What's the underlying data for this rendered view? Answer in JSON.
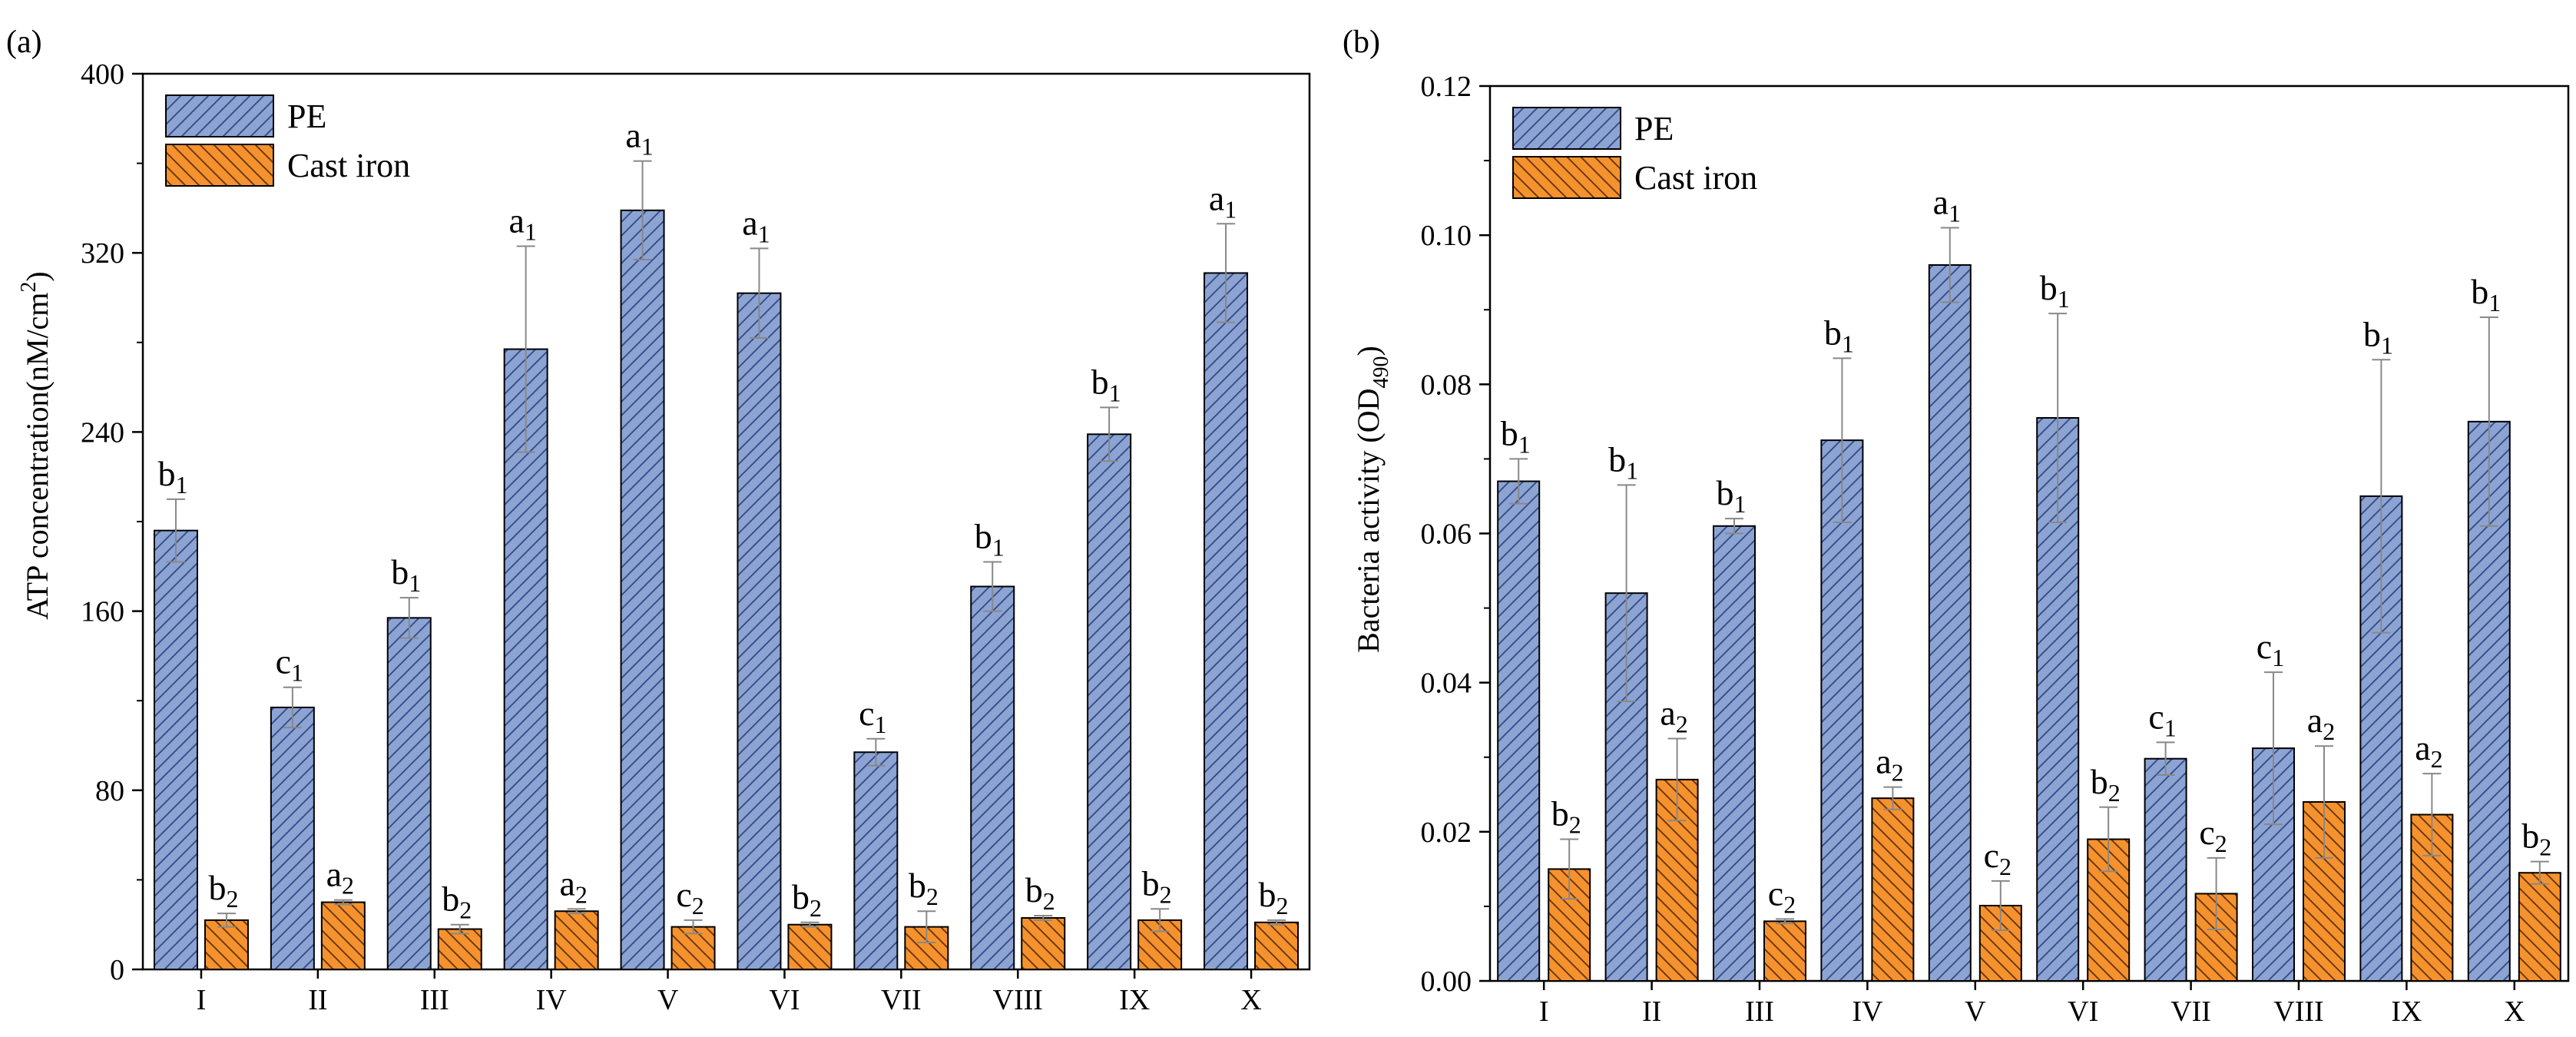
{
  "colors": {
    "pe_fill": "#8da4d2",
    "pe_hatch": "#36508f",
    "ci_fill": "#f6922e",
    "ci_hatch": "#6b3a10",
    "error": "#888888"
  },
  "chart_data": [
    {
      "type": "bar",
      "panel": "(a)",
      "ylabel": "ATP concentration(nM/cm",
      "ylabel_sup": "2",
      "ylabel_end": ")",
      "ylim": [
        0,
        400
      ],
      "yticks": [
        "0",
        "80",
        "160",
        "240",
        "320",
        "400"
      ],
      "ytick_values": [
        0,
        80,
        160,
        240,
        320,
        400
      ],
      "categories": [
        "I",
        "II",
        "III",
        "IV",
        "V",
        "VI",
        "VII",
        "VIII",
        "IX",
        "X"
      ],
      "legend": "top-left",
      "series": [
        {
          "name": "PE",
          "values": [
            196,
            117,
            157,
            277,
            339,
            302,
            97,
            171,
            239,
            311
          ],
          "errors": [
            14,
            9,
            9,
            46,
            22,
            20,
            6,
            11,
            12,
            22
          ],
          "labels": [
            [
              "b",
              "1"
            ],
            [
              "c",
              "1"
            ],
            [
              "b",
              "1"
            ],
            [
              "a",
              "1"
            ],
            [
              "a",
              "1"
            ],
            [
              "a",
              "1"
            ],
            [
              "c",
              "1"
            ],
            [
              "b",
              "1"
            ],
            [
              "b",
              "1"
            ],
            [
              "a",
              "1"
            ]
          ]
        },
        {
          "name": "Cast iron",
          "values": [
            22,
            30,
            18,
            26,
            19,
            20,
            19,
            23,
            22,
            21
          ],
          "errors": [
            3,
            1,
            2,
            1,
            3,
            1,
            7,
            1,
            5,
            1
          ],
          "labels": [
            [
              "b",
              "2"
            ],
            [
              "a",
              "2"
            ],
            [
              "b",
              "2"
            ],
            [
              "a",
              "2"
            ],
            [
              "c",
              "2"
            ],
            [
              "b",
              "2"
            ],
            [
              "b",
              "2"
            ],
            [
              "b",
              "2"
            ],
            [
              "b",
              "2"
            ],
            [
              "b",
              "2"
            ]
          ]
        }
      ]
    },
    {
      "type": "bar",
      "panel": "(b)",
      "ylabel": "Bacteria activity (OD",
      "ylabel_sub": "490",
      "ylabel_end": ")",
      "ylim": [
        0,
        0.12
      ],
      "yticks": [
        "0.00",
        "0.02",
        "0.04",
        "0.06",
        "0.08",
        "0.10",
        "0.12"
      ],
      "ytick_values": [
        0,
        0.02,
        0.04,
        0.06,
        0.08,
        0.1,
        0.12
      ],
      "categories": [
        "I",
        "II",
        "III",
        "IV",
        "V",
        "VI",
        "VII",
        "VIII",
        "IX",
        "X"
      ],
      "legend": "top-left",
      "series": [
        {
          "name": "PE",
          "values": [
            0.067,
            0.052,
            0.061,
            0.0725,
            0.096,
            0.0755,
            0.0298,
            0.0312,
            0.065,
            0.075
          ],
          "errors": [
            0.003,
            0.0145,
            0.001,
            0.011,
            0.005,
            0.014,
            0.0022,
            0.0102,
            0.0183,
            0.014
          ],
          "labels": [
            [
              "b",
              "1"
            ],
            [
              "b",
              "1"
            ],
            [
              "b",
              "1"
            ],
            [
              "b",
              "1"
            ],
            [
              "a",
              "1"
            ],
            [
              "b",
              "1"
            ],
            [
              "c",
              "1"
            ],
            [
              "c",
              "1"
            ],
            [
              "b",
              "1"
            ],
            [
              "b",
              "1"
            ]
          ]
        },
        {
          "name": "Cast iron",
          "values": [
            0.015,
            0.027,
            0.008,
            0.0245,
            0.0101,
            0.019,
            0.0117,
            0.024,
            0.0223,
            0.0145
          ],
          "errors": [
            0.004,
            0.0055,
            0.0003,
            0.0015,
            0.0033,
            0.0043,
            0.0048,
            0.0075,
            0.0055,
            0.0015
          ],
          "labels": [
            [
              "b",
              "2"
            ],
            [
              "a",
              "2"
            ],
            [
              "c",
              "2"
            ],
            [
              "a",
              "2"
            ],
            [
              "c",
              "2"
            ],
            [
              "b",
              "2"
            ],
            [
              "c",
              "2"
            ],
            [
              "a",
              "2"
            ],
            [
              "a",
              "2"
            ],
            [
              "b",
              "2"
            ]
          ]
        }
      ]
    }
  ]
}
